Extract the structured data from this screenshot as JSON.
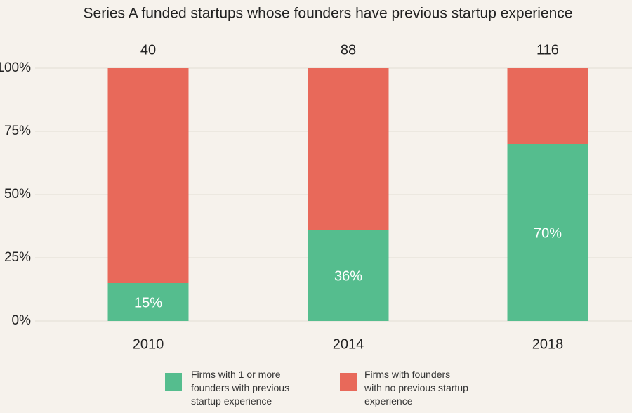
{
  "chart_data": {
    "type": "stacked_bar",
    "title": "Series A funded startups whose founders have previous startup experience",
    "categories": [
      "2010",
      "2014",
      "2018"
    ],
    "series": [
      {
        "name": "Firms with 1 or more founders with previous startup experience",
        "color": "#55bd8e",
        "values": [
          15,
          36,
          70
        ],
        "value_labels": [
          "15%",
          "36%",
          "70%"
        ]
      },
      {
        "name": "Firms with founders with no previous startup experience",
        "color": "#e8695a",
        "values": [
          85,
          64,
          30
        ]
      }
    ],
    "top_labels": [
      40,
      88,
      116
    ],
    "ylim": [
      0,
      100
    ],
    "yticks": [
      {
        "value": 0,
        "label": "0%"
      },
      {
        "value": 25,
        "label": "25%"
      },
      {
        "value": 50,
        "label": "50%"
      },
      {
        "value": 75,
        "label": "75%"
      },
      {
        "value": 100,
        "label": "100%"
      }
    ],
    "grid": true
  }
}
